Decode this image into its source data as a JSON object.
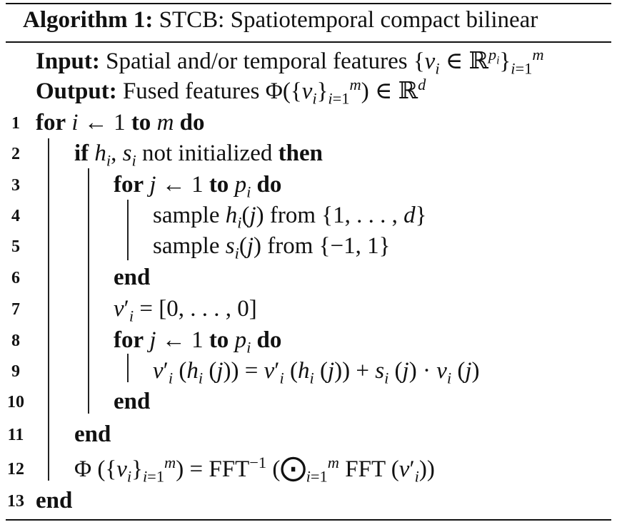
{
  "title": {
    "label": "Algorithm 1:",
    "text": "STCB: Spatiotemporal compact bilinear"
  },
  "io": {
    "input_label": "Input:",
    "input_text": "Spatial and/or temporal features",
    "output_label": "Output:",
    "output_text": "Fused features"
  },
  "keywords": {
    "for": "for",
    "to": "to",
    "do": "do",
    "if": "if",
    "then": "then",
    "end": "end"
  },
  "lines": [
    {
      "num": "1"
    },
    {
      "num": "2"
    },
    {
      "num": "3"
    },
    {
      "num": "4"
    },
    {
      "num": "5"
    },
    {
      "num": "6"
    },
    {
      "num": "7"
    },
    {
      "num": "8"
    },
    {
      "num": "9"
    },
    {
      "num": "10"
    },
    {
      "num": "11"
    },
    {
      "num": "12"
    },
    {
      "num": "13"
    }
  ],
  "text": {
    "not_initialized": "not initialized",
    "sample": "sample",
    "from": "from",
    "fft": "FFT"
  }
}
